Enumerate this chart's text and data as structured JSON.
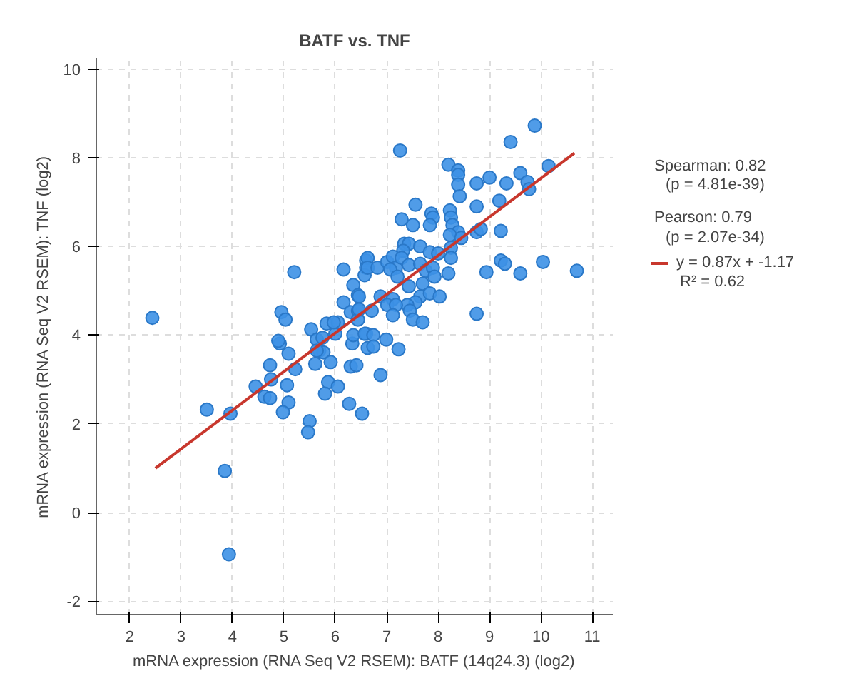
{
  "chart_data": {
    "type": "scatter",
    "title": "BATF vs. TNF",
    "xlabel": "mRNA expression (RNA Seq V2 RSEM): BATF (14q24.3) (log2)",
    "ylabel": "mRNA expression (RNA Seq V2 RSEM): TNF (log2)",
    "xlim": [
      1.35,
      11.4
    ],
    "ylim": [
      -2.3,
      10.25
    ],
    "xticks": [
      2,
      3,
      4,
      5,
      6,
      7,
      8,
      9,
      10,
      11
    ],
    "yticks": [
      -2,
      0,
      2,
      4,
      6,
      8,
      10
    ],
    "grid": true,
    "legend": "right",
    "marker": "circle",
    "annotations": [
      "Spearman: 0.82",
      "(p = 4.81e-39)",
      "Pearson: 0.79",
      "(p = 2.07e-34)",
      "R² = 0.62"
    ],
    "series": [
      {
        "color": "#3d91e6",
        "x": [
          2.44,
          3.5,
          3.96,
          3.85,
          3.93,
          4.73,
          5.09,
          4.45,
          4.75,
          4.62,
          4.73,
          5.22,
          5.06,
          5.09,
          4.98,
          5.5,
          5.47,
          5.61,
          5.69,
          5.77,
          5.91,
          5.86,
          5.8,
          6.05,
          6.3,
          6.41,
          6.27,
          6.52,
          6.33,
          4.92,
          5.2,
          6.16,
          4.95,
          5.03,
          4.89,
          5.53,
          5.64,
          5.83,
          5.75,
          6.0,
          6.05,
          5.64,
          6.35,
          6.44,
          6.16,
          6.3,
          6.44,
          6.44,
          6.35,
          6.6,
          6.6,
          6.57,
          6.6,
          6.63,
          7.26,
          9.41,
          9.88,
          8.2,
          8.39,
          8.39,
          8.39,
          8.42,
          8.75,
          9.0,
          9.33,
          9.6,
          9.74,
          9.77,
          10.15,
          9.19,
          8.75,
          7.56,
          7.29,
          7.51,
          7.87,
          7.9,
          7.84,
          8.23,
          8.25,
          8.28,
          8.39,
          8.23,
          8.45,
          8.75,
          8.83,
          9.22,
          7.34,
          7.43,
          7.32,
          7.65,
          7.84,
          8.0,
          8.25,
          8.25,
          6.63,
          6.63,
          6.82,
          7.01,
          7.12,
          7.18,
          7.29,
          7.43,
          7.07,
          7.21,
          7.65,
          7.76,
          7.9,
          7.93,
          8.2,
          6.46,
          6.88,
          7.12,
          7.01,
          7.43,
          7.7,
          7.65,
          7.84,
          8.03,
          7.56,
          7.4,
          7.18,
          7.45,
          7.51,
          7.7,
          6.71,
          6.46,
          5.97,
          7.12,
          6.57,
          6.74,
          6.74,
          6.99,
          7.23,
          6.88,
          8.75,
          8.94,
          9.22,
          9.3,
          9.6,
          10.04,
          10.7
        ],
        "values": [
          4.39,
          2.32,
          2.23,
          0.94,
          -0.94,
          3.32,
          3.58,
          2.84,
          3.0,
          2.61,
          2.58,
          3.23,
          2.87,
          2.48,
          2.26,
          2.06,
          1.81,
          3.35,
          3.65,
          3.61,
          3.39,
          2.94,
          2.68,
          2.84,
          3.29,
          3.32,
          2.45,
          2.23,
          3.81,
          3.81,
          5.42,
          5.48,
          4.52,
          4.35,
          3.87,
          4.13,
          3.9,
          4.26,
          3.94,
          4.03,
          4.29,
          3.65,
          5.13,
          4.9,
          4.74,
          4.52,
          4.55,
          4.35,
          4.0,
          5.68,
          5.52,
          5.35,
          4.03,
          3.71,
          8.16,
          8.35,
          8.72,
          7.84,
          7.71,
          7.61,
          7.39,
          7.13,
          7.42,
          7.55,
          7.42,
          7.65,
          7.45,
          7.29,
          7.81,
          7.03,
          6.9,
          6.94,
          6.61,
          6.48,
          6.74,
          6.65,
          6.48,
          6.81,
          6.65,
          6.48,
          6.32,
          6.26,
          6.19,
          6.32,
          6.39,
          6.35,
          6.06,
          6.06,
          5.9,
          6.0,
          5.87,
          5.84,
          5.97,
          5.74,
          5.74,
          5.52,
          5.52,
          5.65,
          5.77,
          5.52,
          5.74,
          5.58,
          5.48,
          5.32,
          5.61,
          5.45,
          5.52,
          5.32,
          5.39,
          4.87,
          4.87,
          4.81,
          4.68,
          5.1,
          5.16,
          4.87,
          4.94,
          4.87,
          4.74,
          4.68,
          4.68,
          4.55,
          4.35,
          4.29,
          4.55,
          4.58,
          4.29,
          4.45,
          4.03,
          4.0,
          3.74,
          3.9,
          3.68,
          3.1,
          4.48,
          5.42,
          5.68,
          5.61,
          5.39,
          5.65,
          5.45
        ]
      },
      {
        "type": "line",
        "name": "y = 0.87x + -1.17",
        "marker": "none",
        "color": "#c8372d",
        "x": [
          2.5,
          10.65
        ],
        "values": [
          1.0,
          8.1
        ]
      }
    ]
  }
}
